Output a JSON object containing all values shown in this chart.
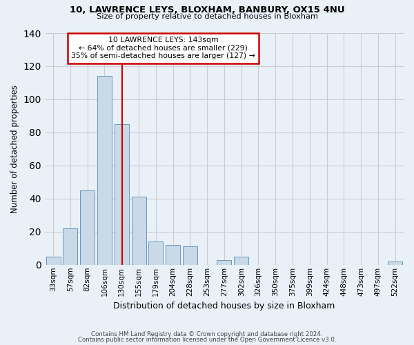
{
  "title": "10, LAWRENCE LEYS, BLOXHAM, BANBURY, OX15 4NU",
  "subtitle": "Size of property relative to detached houses in Bloxham",
  "xlabel": "Distribution of detached houses by size in Bloxham",
  "ylabel": "Number of detached properties",
  "bar_labels": [
    "33sqm",
    "57sqm",
    "82sqm",
    "106sqm",
    "130sqm",
    "155sqm",
    "179sqm",
    "204sqm",
    "228sqm",
    "253sqm",
    "277sqm",
    "302sqm",
    "326sqm",
    "350sqm",
    "375sqm",
    "399sqm",
    "424sqm",
    "448sqm",
    "473sqm",
    "497sqm",
    "522sqm"
  ],
  "bar_heights": [
    5,
    22,
    45,
    114,
    85,
    41,
    14,
    12,
    11,
    0,
    3,
    5,
    0,
    0,
    0,
    0,
    0,
    0,
    0,
    0,
    2
  ],
  "bar_color": "#c9d9e8",
  "bar_edge_color": "#6699bb",
  "property_line_label": "10 LAWRENCE LEYS: 143sqm",
  "annotation_line1": "← 64% of detached houses are smaller (229)",
  "annotation_line2": "35% of semi-detached houses are larger (127) →",
  "annotation_box_color": "white",
  "annotation_box_edge": "#cc0000",
  "red_line_color": "#cc0000",
  "ylim": [
    0,
    140
  ],
  "yticks": [
    0,
    20,
    40,
    60,
    80,
    100,
    120,
    140
  ],
  "grid_color": "#cccccc",
  "background_color": "#eaf0f8",
  "footer_line1": "Contains HM Land Registry data © Crown copyright and database right 2024.",
  "footer_line2": "Contains public sector information licensed under the Open Government Licence v3.0."
}
